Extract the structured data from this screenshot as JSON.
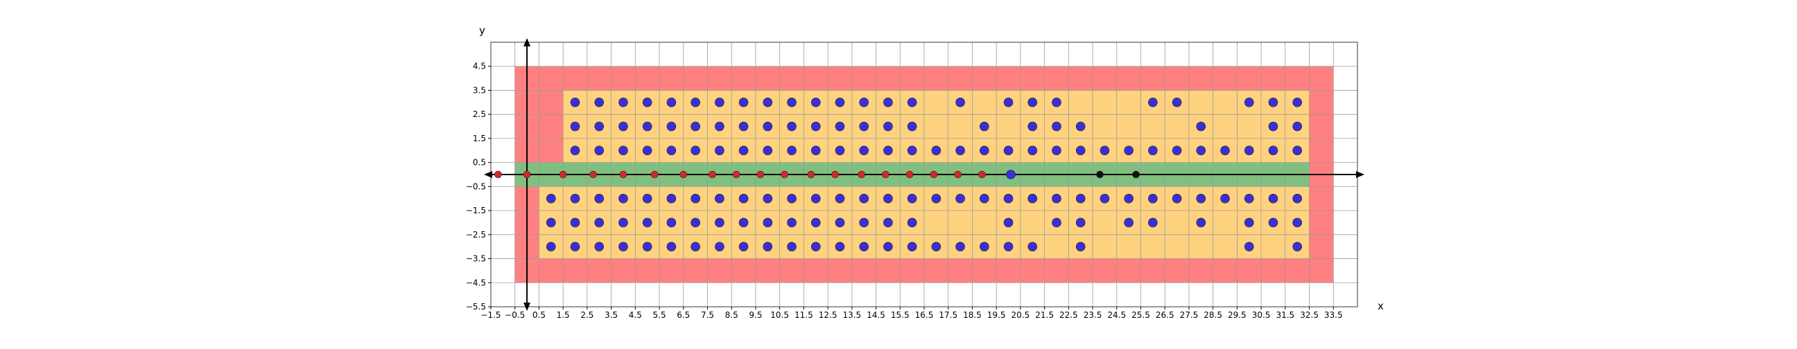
{
  "chart_data": {
    "type": "scatter",
    "xlabel": "x",
    "ylabel": "y",
    "xlim": [
      -1.5,
      34.5
    ],
    "ylim": [
      -5.5,
      5.5
    ],
    "x_ticks": [
      -1.5,
      -0.5,
      0.5,
      1.5,
      2.5,
      3.5,
      4.5,
      5.5,
      6.5,
      7.5,
      8.5,
      9.5,
      10.5,
      11.5,
      12.5,
      13.5,
      14.5,
      15.5,
      16.5,
      17.5,
      18.5,
      19.5,
      20.5,
      21.5,
      22.5,
      23.5,
      24.5,
      25.5,
      26.5,
      27.5,
      28.5,
      29.5,
      30.5,
      31.5,
      32.5,
      33.5
    ],
    "y_ticks": [
      4.5,
      3.5,
      2.5,
      1.5,
      0.5,
      -0.5,
      -1.5,
      -2.5,
      -3.5,
      -4.5,
      -5.5
    ],
    "grid": true,
    "colors": {
      "red_region": "#ff8080",
      "orange_region": "#ffd27f",
      "green_region": "#80bf80",
      "blue_point": "#3a2fd6",
      "red_point": "#d42a2a",
      "black_point": "#111111",
      "grid": "#9a9a9a"
    },
    "regions": [
      {
        "color": "red",
        "x0": -0.5,
        "x1": 33.5,
        "y0": -4.5,
        "y1": 4.5
      },
      {
        "color": "orange",
        "x0": 1.5,
        "x1": 32.5,
        "y0": 0.5,
        "y1": 3.5
      },
      {
        "color": "orange",
        "x0": 0.5,
        "x1": 32.5,
        "y0": -3.5,
        "y1": -0.5
      },
      {
        "color": "green",
        "x0": -0.5,
        "x1": 32.5,
        "y0": -0.5,
        "y1": 0.5
      }
    ],
    "series": [
      {
        "color": "blue",
        "rows": [
          {
            "y": 3,
            "x": [
              2,
              3,
              4,
              5,
              6,
              7,
              8,
              9,
              10,
              11,
              12,
              13,
              14,
              15,
              16,
              18,
              20,
              21,
              22,
              26,
              27,
              30,
              31,
              32
            ]
          },
          {
            "y": 2,
            "x": [
              2,
              3,
              4,
              5,
              6,
              7,
              8,
              9,
              10,
              11,
              12,
              13,
              14,
              15,
              16,
              19,
              21,
              22,
              23,
              28,
              31,
              32
            ]
          },
          {
            "y": 1,
            "x": [
              2,
              3,
              4,
              5,
              6,
              7,
              8,
              9,
              10,
              11,
              12,
              13,
              14,
              15,
              16,
              17,
              18,
              19,
              20,
              21,
              22,
              23,
              24,
              25,
              26,
              27,
              28,
              29,
              30,
              31,
              32
            ]
          },
          {
            "y": 0,
            "x": [
              20.1
            ]
          },
          {
            "y": -1,
            "x": [
              1,
              2,
              3,
              4,
              5,
              6,
              7,
              8,
              9,
              10,
              11,
              12,
              13,
              14,
              15,
              16,
              17,
              18,
              19,
              20,
              21,
              22,
              23,
              24,
              25,
              26,
              27,
              28,
              29,
              30,
              31,
              32
            ]
          },
          {
            "y": -2,
            "x": [
              1,
              2,
              3,
              4,
              5,
              6,
              7,
              8,
              9,
              10,
              11,
              12,
              13,
              14,
              15,
              16,
              20,
              22,
              23,
              25,
              26,
              28,
              30,
              31,
              32
            ]
          },
          {
            "y": -3,
            "x": [
              1,
              2,
              3,
              4,
              5,
              6,
              7,
              8,
              9,
              10,
              11,
              12,
              13,
              14,
              15,
              16,
              17,
              18,
              19,
              20,
              21,
              23,
              30,
              32
            ]
          }
        ]
      },
      {
        "color": "red",
        "rows": [
          {
            "y": 0,
            "x": [
              -1.2,
              0,
              1.5,
              2.75,
              4,
              5.3,
              6.5,
              7.7,
              8.7,
              9.7,
              10.7,
              11.8,
              12.8,
              13.9,
              14.9,
              15.9,
              16.9,
              17.9,
              18.9
            ]
          }
        ]
      },
      {
        "color": "black",
        "rows": [
          {
            "y": 0,
            "x": [
              23.8,
              25.3
            ]
          }
        ]
      }
    ]
  }
}
